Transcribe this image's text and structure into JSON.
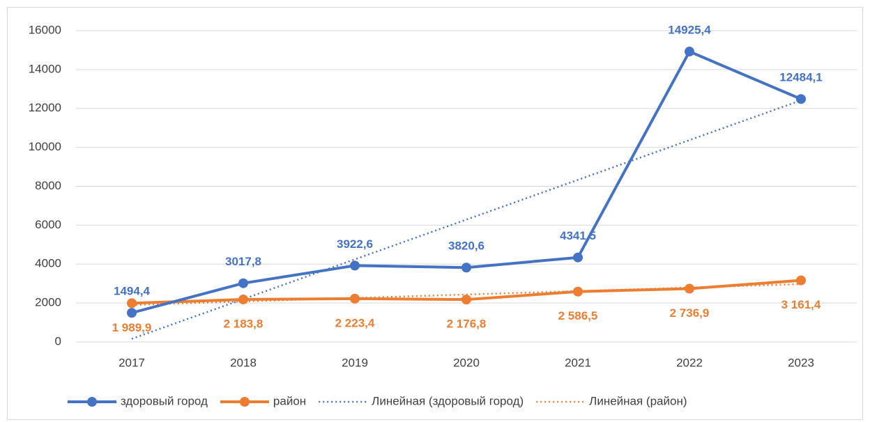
{
  "chart_data": {
    "type": "line",
    "categories": [
      "2017",
      "2018",
      "2019",
      "2020",
      "2021",
      "2022",
      "2023"
    ],
    "ylim": [
      0,
      16000
    ],
    "yticks": [
      0,
      2000,
      4000,
      6000,
      8000,
      10000,
      12000,
      14000,
      16000
    ],
    "grid": true,
    "legend": "bottom",
    "series": [
      {
        "name": "здоровый город",
        "color": "#4472c4",
        "marker": true,
        "label_position": "above",
        "values": [
          1494.4,
          3017.8,
          3922.6,
          3820.6,
          4341.5,
          14925.4,
          12484.1
        ],
        "value_labels": [
          "1494,4",
          "3017,8",
          "3922,6",
          "3820,6",
          "4341,5",
          "14925,4",
          "12484,1"
        ]
      },
      {
        "name": "район",
        "color": "#ed7d31",
        "marker": true,
        "label_position": "below",
        "values": [
          1989.9,
          2183.8,
          2223.4,
          2176.8,
          2586.5,
          2736.9,
          3161.4
        ],
        "value_labels": [
          "1 989,9",
          "2 183,8",
          "2 223,4",
          "2 176,8",
          "2 586,5",
          "2 736,9",
          "3 161,4"
        ]
      },
      {
        "name": "Линейная (здоровый город)",
        "color": "#4472c4",
        "dotted": true,
        "values": [
          157.6,
          2200.6,
          4243.7,
          6286.6,
          8329.6,
          10372.6,
          12415.6
        ]
      },
      {
        "name": "Линейная (район)",
        "color": "#ed7d31",
        "dotted": true,
        "values": [
          1903.0,
          2081.0,
          2259.0,
          2437.0,
          2615.0,
          2793.0,
          2971.0
        ]
      }
    ]
  }
}
